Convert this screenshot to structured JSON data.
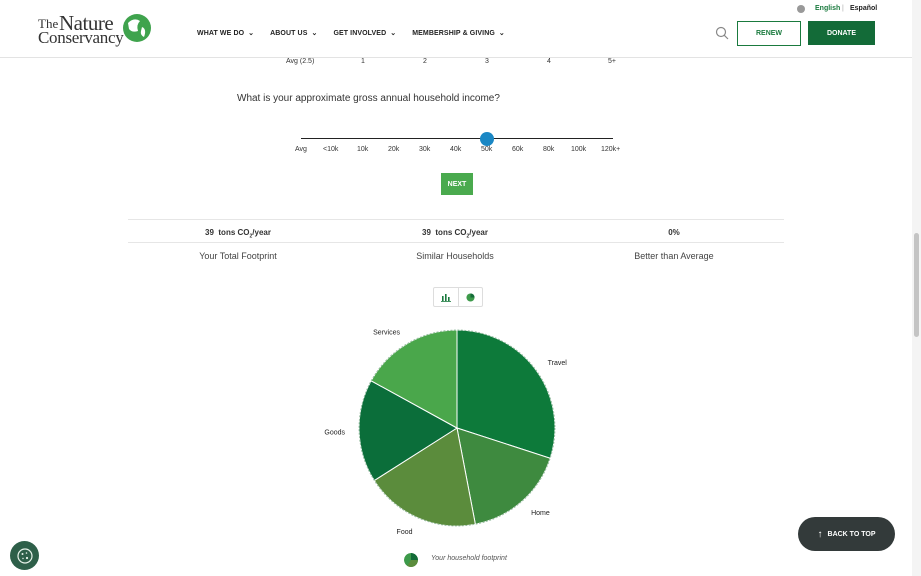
{
  "header": {
    "logo_the": "The",
    "logo_nature": "Nature",
    "logo_conservancy": "Conservancy",
    "nav": [
      {
        "label": "WHAT WE DO"
      },
      {
        "label": "ABOUT US"
      },
      {
        "label": "GET INVOLVED"
      },
      {
        "label": "MEMBERSHIP & GIVING"
      }
    ],
    "lang_english": "English",
    "lang_divider": "|",
    "lang_espanol": "Español",
    "renew_label": "RENEW",
    "donate_label": "DONATE"
  },
  "top_scale": [
    "Avg (2.5)",
    "1",
    "2",
    "3",
    "4",
    "5+"
  ],
  "question": "What is your approximate gross annual household income?",
  "income_slider": {
    "labels": [
      "Avg",
      "<10k",
      "10k",
      "20k",
      "30k",
      "40k",
      "50k",
      "60k",
      "80k",
      "100k",
      "120k+"
    ],
    "selected": "50k"
  },
  "next_label": "NEXT",
  "stats": [
    {
      "value": "39",
      "unit_pre": "tons CO",
      "unit_sub": "2",
      "unit_post": "/year",
      "label": "Your Total Footprint"
    },
    {
      "value": "39",
      "unit_pre": "tons CO",
      "unit_sub": "2",
      "unit_post": "/year",
      "label": "Similar Households"
    },
    {
      "value": "0%",
      "label": "Better than Average"
    }
  ],
  "chart_toggle": {
    "bar_icon": "bar-chart-icon",
    "pie_icon": "pie-chart-icon",
    "selected": "pie"
  },
  "chart_data": {
    "type": "pie",
    "series_name": "Your household footprint",
    "categories": [
      "Travel",
      "Home",
      "Food",
      "Goods",
      "Services"
    ],
    "values": [
      30,
      17,
      19,
      17,
      17
    ],
    "colors": [
      "#0d7a3a",
      "#3e8a3f",
      "#5b8c3c",
      "#0b6e3a",
      "#4aa74b"
    ]
  },
  "legend_label": "Your household footprint",
  "back_to_top_label": "BACK TO TOP",
  "colors": {
    "brand_green": "#136b38",
    "accent_blue": "#1a87c4",
    "next_green": "#4aaa4e"
  }
}
